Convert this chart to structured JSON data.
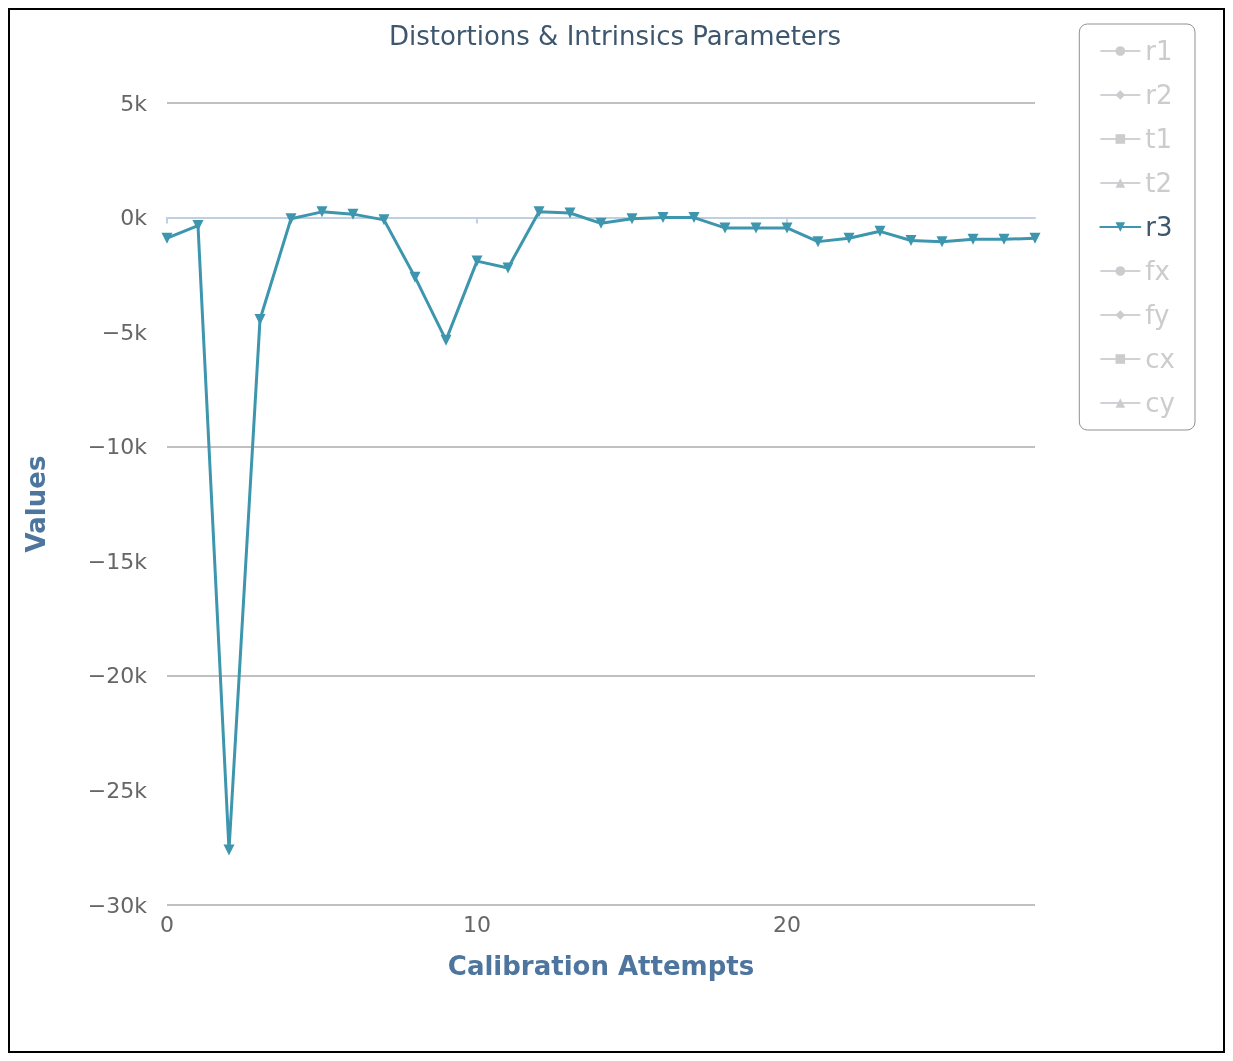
{
  "chart_data": {
    "type": "line",
    "title": "Distortions & Intrinsics Parameters",
    "xlabel": "Calibration Attempts",
    "ylabel": "Values",
    "x": [
      0,
      1,
      2,
      3,
      4,
      5,
      6,
      7,
      8,
      9,
      10,
      11,
      12,
      13,
      14,
      15,
      16,
      17,
      18,
      19,
      20,
      21,
      22,
      23,
      24,
      25,
      26,
      27,
      28
    ],
    "series": [
      {
        "name": "r1",
        "color": "#cccccc",
        "marker": "circle",
        "values": [
          null,
          null,
          null,
          null,
          null,
          null,
          null,
          null,
          null,
          null,
          null,
          null,
          null,
          null,
          null,
          null,
          null,
          null,
          null,
          null,
          null,
          null,
          null,
          null,
          null,
          null,
          null,
          null,
          null
        ]
      },
      {
        "name": "r2",
        "color": "#cccccc",
        "marker": "diamond",
        "values": [
          null,
          null,
          null,
          null,
          null,
          null,
          null,
          null,
          null,
          null,
          null,
          null,
          null,
          null,
          null,
          null,
          null,
          null,
          null,
          null,
          null,
          null,
          null,
          null,
          null,
          null,
          null,
          null,
          null
        ]
      },
      {
        "name": "t1",
        "color": "#cccccc",
        "marker": "square",
        "values": [
          null,
          null,
          null,
          null,
          null,
          null,
          null,
          null,
          null,
          null,
          null,
          null,
          null,
          null,
          null,
          null,
          null,
          null,
          null,
          null,
          null,
          null,
          null,
          null,
          null,
          null,
          null,
          null,
          null
        ]
      },
      {
        "name": "t2",
        "color": "#cccccc",
        "marker": "triangle",
        "values": [
          null,
          null,
          null,
          null,
          null,
          null,
          null,
          null,
          null,
          null,
          null,
          null,
          null,
          null,
          null,
          null,
          null,
          null,
          null,
          null,
          null,
          null,
          null,
          null,
          null,
          null,
          null,
          null,
          null
        ]
      },
      {
        "name": "r3",
        "color": "#3d96ae",
        "marker": "triangle-down",
        "values": [
          -900,
          -350,
          -27600,
          -4450,
          -50,
          250,
          150,
          -100,
          -2600,
          -5350,
          -1900,
          -2200,
          250,
          200,
          -250,
          -50,
          0,
          0,
          -450,
          -450,
          -450,
          -1050,
          -900,
          -600,
          -1000,
          -1050,
          -950,
          -950,
          -900
        ]
      },
      {
        "name": "fx",
        "color": "#cccccc",
        "marker": "circle",
        "values": [
          null,
          null,
          null,
          null,
          null,
          null,
          null,
          null,
          null,
          null,
          null,
          null,
          null,
          null,
          null,
          null,
          null,
          null,
          null,
          null,
          null,
          null,
          null,
          null,
          null,
          null,
          null,
          null,
          null
        ]
      },
      {
        "name": "fy",
        "color": "#cccccc",
        "marker": "diamond",
        "values": [
          null,
          null,
          null,
          null,
          null,
          null,
          null,
          null,
          null,
          null,
          null,
          null,
          null,
          null,
          null,
          null,
          null,
          null,
          null,
          null,
          null,
          null,
          null,
          null,
          null,
          null,
          null,
          null,
          null
        ]
      },
      {
        "name": "cx",
        "color": "#cccccc",
        "marker": "square",
        "values": [
          null,
          null,
          null,
          null,
          null,
          null,
          null,
          null,
          null,
          null,
          null,
          null,
          null,
          null,
          null,
          null,
          null,
          null,
          null,
          null,
          null,
          null,
          null,
          null,
          null,
          null,
          null,
          null,
          null
        ]
      },
      {
        "name": "cy",
        "color": "#cccccc",
        "marker": "triangle",
        "values": [
          null,
          null,
          null,
          null,
          null,
          null,
          null,
          null,
          null,
          null,
          null,
          null,
          null,
          null,
          null,
          null,
          null,
          null,
          null,
          null,
          null,
          null,
          null,
          null,
          null,
          null,
          null,
          null,
          null
        ]
      }
    ],
    "xlim": [
      0,
      28
    ],
    "xticks": [
      0,
      10,
      20
    ],
    "ylim": [
      -30000,
      5000
    ],
    "yticks": [
      {
        "value": -30000,
        "label": "−30k"
      },
      {
        "value": -25000,
        "label": "−25k"
      },
      {
        "value": -20000,
        "label": "−20k"
      },
      {
        "value": -15000,
        "label": "−15k"
      },
      {
        "value": -10000,
        "label": "−10k"
      },
      {
        "value": -5000,
        "label": "−5k"
      },
      {
        "value": 0,
        "label": "0k"
      },
      {
        "value": 5000,
        "label": "5k"
      }
    ],
    "grid": "y",
    "legend": "top right",
    "line_style": "solid"
  }
}
